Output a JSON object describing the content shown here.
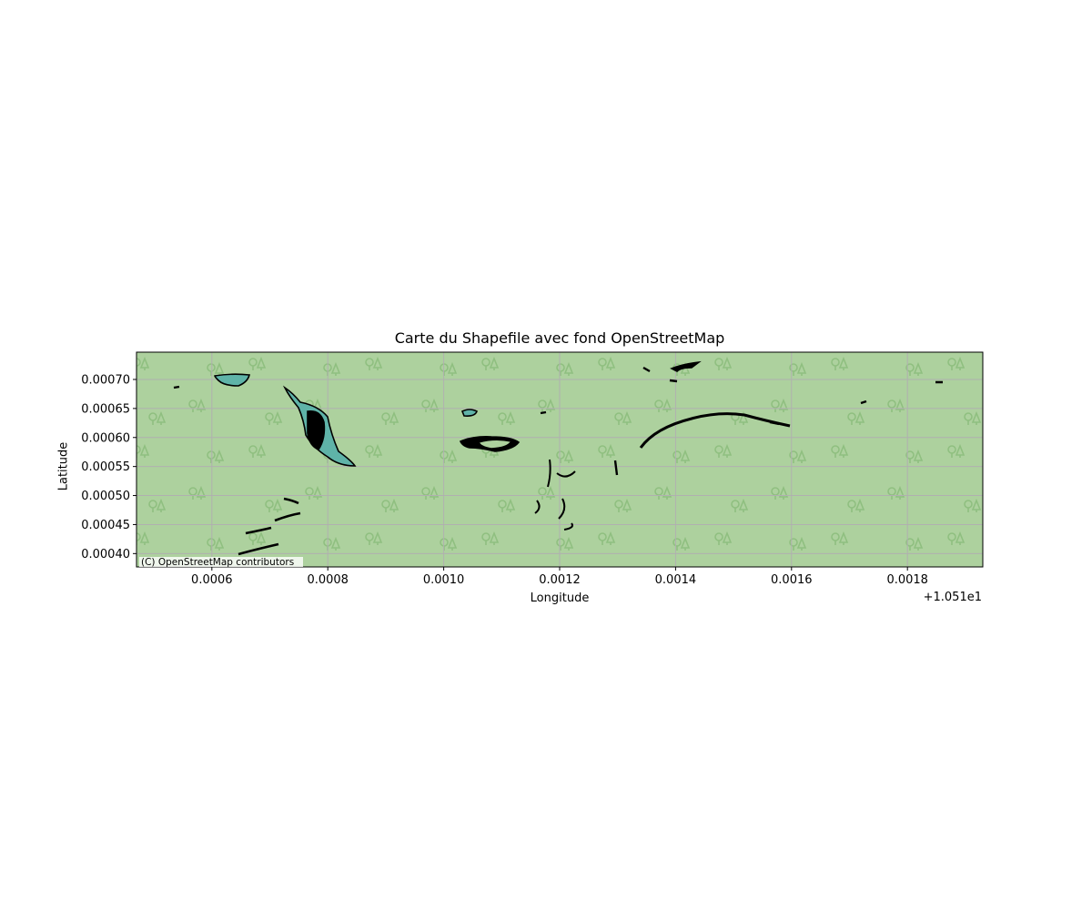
{
  "chart_data": {
    "type": "map",
    "title": "Carte du Shapefile avec fond OpenStreetMap",
    "xlabel": "Longitude",
    "ylabel": "Latitude",
    "x_offset_label": "+1.051e1",
    "attribution": "(C) OpenStreetMap contributors",
    "grid": true,
    "basemap": "OpenStreetMap (forest area)",
    "x_ticks": [
      "0.0006",
      "0.0008",
      "0.0010",
      "0.0012",
      "0.0014",
      "0.0016",
      "0.0018"
    ],
    "y_ticks": [
      "0.00040",
      "0.00045",
      "0.00050",
      "0.00055",
      "0.00060",
      "0.00065",
      "0.00070"
    ],
    "xlim": [
      0.00047,
      0.00193
    ],
    "ylim": [
      0.000377,
      0.000747
    ],
    "colors": {
      "background": "#add19e",
      "grid": "#b0b0b0",
      "polygon_fill": "#5fb3a8",
      "polygon_edge": "#000000",
      "tree_pattern": "#8fbf80"
    }
  }
}
